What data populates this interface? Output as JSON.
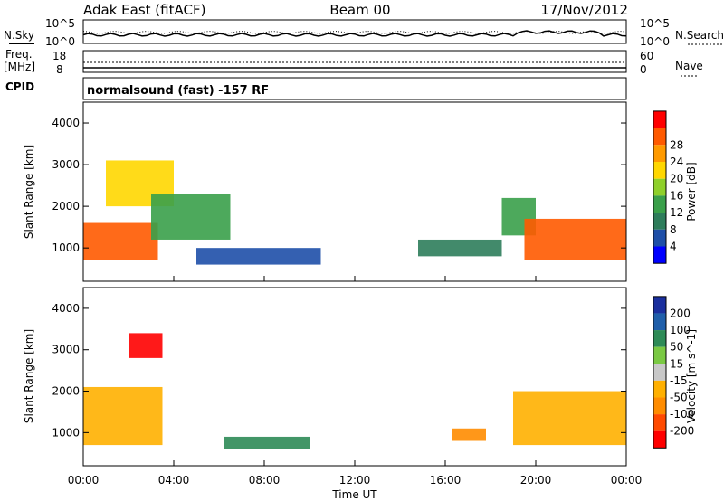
{
  "header": {
    "station": "Adak East (fitACF)",
    "beam": "Beam 00",
    "date": "17/Nov/2012"
  },
  "noise_panel": {
    "left_label": "N.Sky",
    "right_label": "N.Search",
    "top_tick": "10^5",
    "bottom_tick": "10^0"
  },
  "freq_panel": {
    "left_label_1": "Freq.",
    "left_label_2": "[MHz]",
    "right_label": "Nave",
    "left_ticks": [
      "18",
      "8"
    ],
    "right_ticks": [
      "60",
      "0"
    ]
  },
  "cpid": {
    "label": "CPID",
    "text": "normalsound (fast) -157 RF"
  },
  "x_axis": {
    "label": "Time UT",
    "ticks": [
      "00:00",
      "04:00",
      "08:00",
      "12:00",
      "16:00",
      "20:00",
      "00:00"
    ]
  },
  "colors": {
    "power_scale": [
      "#0000ff",
      "#1e4fa8",
      "#2e7d5b",
      "#3aa04a",
      "#8fd02a",
      "#ffd700",
      "#ff9a00",
      "#ff5a00",
      "#ff0000"
    ],
    "velocity_scale": [
      "#ff0000",
      "#ff4a00",
      "#ff8c00",
      "#ffb000",
      "#c8c8c8",
      "#7ac943",
      "#2e8b57",
      "#1f5faa",
      "#1a2f9e"
    ]
  },
  "chart_data": [
    {
      "type": "heatmap",
      "title": "",
      "xlabel": "Time UT",
      "ylabel": "Slant Range [km]",
      "ylim": [
        200,
        4500
      ],
      "y_ticks": [
        "1000",
        "2000",
        "3000",
        "4000"
      ],
      "colorbar_label": "Power [dB]",
      "colorbar_ticks": [
        "4",
        "8",
        "12",
        "16",
        "20",
        "24",
        "28"
      ],
      "regions": [
        {
          "x": [
            0,
            3.3
          ],
          "y": [
            700,
            1600
          ],
          "level": 28
        },
        {
          "x": [
            1,
            4
          ],
          "y": [
            2000,
            3100
          ],
          "level": 20
        },
        {
          "x": [
            3,
            6.5
          ],
          "y": [
            1200,
            2300
          ],
          "level": 12
        },
        {
          "x": [
            5,
            10.5
          ],
          "y": [
            600,
            1000
          ],
          "level": 4
        },
        {
          "x": [
            14.8,
            18.5
          ],
          "y": [
            800,
            1200
          ],
          "level": 8
        },
        {
          "x": [
            18.5,
            20
          ],
          "y": [
            1300,
            2200
          ],
          "level": 12
        },
        {
          "x": [
            19.5,
            24
          ],
          "y": [
            700,
            1700
          ],
          "level": 28
        }
      ]
    },
    {
      "type": "heatmap",
      "title": "",
      "xlabel": "Time UT",
      "ylabel": "Slant Range [km]",
      "ylim": [
        200,
        4500
      ],
      "y_ticks": [
        "1000",
        "2000",
        "3000",
        "4000"
      ],
      "colorbar_label": "Velocity [m s^-1]",
      "colorbar_ticks": [
        "200",
        "100",
        "50",
        "15",
        "-15",
        "-50",
        "-100",
        "-200"
      ],
      "regions": [
        {
          "x": [
            0,
            3.5
          ],
          "y": [
            700,
            2100
          ],
          "level": -15
        },
        {
          "x": [
            2,
            3.5
          ],
          "y": [
            2800,
            3400
          ],
          "level": -200
        },
        {
          "x": [
            6.2,
            10
          ],
          "y": [
            600,
            900
          ],
          "level": 50
        },
        {
          "x": [
            16.3,
            17.8
          ],
          "y": [
            800,
            1100
          ],
          "level": -50
        },
        {
          "x": [
            19,
            24
          ],
          "y": [
            700,
            2000
          ],
          "level": -15
        }
      ]
    }
  ]
}
